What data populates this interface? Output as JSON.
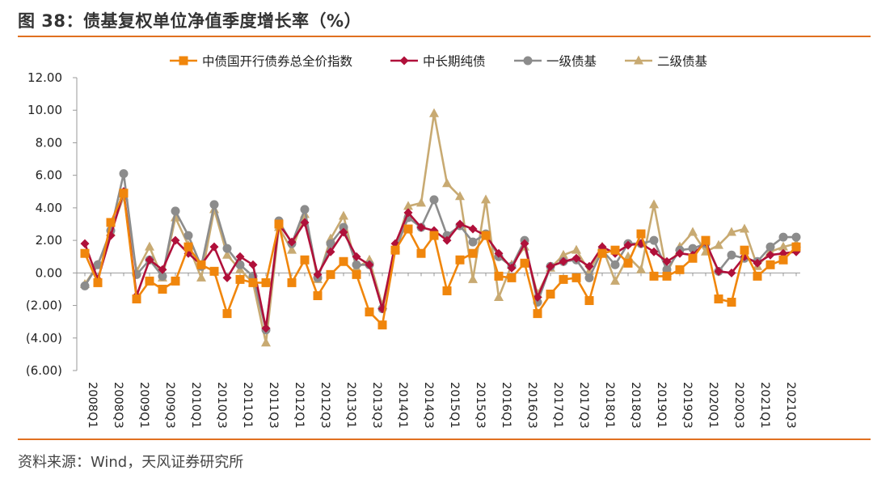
{
  "title": "图 38：债基复权单位净值季度增长率（%）",
  "source": "资料来源：Wind，天风证券研究所",
  "chart_data": {
    "type": "line",
    "ylim": [
      -6,
      12
    ],
    "y_tick_values": [
      12,
      10,
      8,
      6,
      4,
      2,
      0,
      -2,
      -4,
      -6
    ],
    "y_tick_labels": [
      "12.00",
      "10.00",
      "8.00",
      "6.00",
      "4.00",
      "2.00",
      "0.00",
      "(2.00)",
      "(4.00)",
      "(6.00)"
    ],
    "x": [
      "2008Q1",
      "2008Q2",
      "2008Q3",
      "2008Q4",
      "2009Q1",
      "2009Q2",
      "2009Q3",
      "2009Q4",
      "2010Q1",
      "2010Q2",
      "2010Q3",
      "2010Q4",
      "2011Q1",
      "2011Q2",
      "2011Q3",
      "2011Q4",
      "2012Q1",
      "2012Q2",
      "2012Q3",
      "2012Q4",
      "2013Q1",
      "2013Q2",
      "2013Q3",
      "2013Q4",
      "2014Q1",
      "2014Q2",
      "2014Q3",
      "2014Q4",
      "2015Q1",
      "2015Q2",
      "2015Q3",
      "2015Q4",
      "2016Q1",
      "2016Q2",
      "2016Q3",
      "2016Q4",
      "2017Q1",
      "2017Q2",
      "2017Q3",
      "2017Q4",
      "2018Q1",
      "2018Q2",
      "2018Q3",
      "2018Q4",
      "2019Q1",
      "2019Q2",
      "2019Q3",
      "2019Q4",
      "2020Q1",
      "2020Q2",
      "2020Q3",
      "2020Q4",
      "2021Q1",
      "2021Q2",
      "2021Q3",
      "2021Q4"
    ],
    "x_tick_labels": [
      "2008Q1",
      "2008Q3",
      "2009Q1",
      "2009Q3",
      "2010Q1",
      "2010Q3",
      "2011Q1",
      "2011Q3",
      "2012Q1",
      "2012Q3",
      "2013Q1",
      "2013Q3",
      "2014Q1",
      "2014Q3",
      "2015Q1",
      "2015Q3",
      "2016Q1",
      "2016Q3",
      "2017Q1",
      "2017Q3",
      "2018Q1",
      "2018Q3",
      "2019Q1",
      "2019Q3",
      "2020Q1",
      "2020Q3",
      "2021Q1",
      "2021Q3"
    ],
    "legend_position": "top",
    "grid": false,
    "series": [
      {
        "name": "中债国开行债券总全价指数",
        "color": "#f0860c",
        "marker": "square",
        "values": [
          1.2,
          -0.6,
          3.1,
          4.9,
          -1.6,
          -0.5,
          -1.0,
          -0.5,
          1.6,
          0.5,
          0.1,
          -2.5,
          -0.4,
          -0.6,
          -0.6,
          3.0,
          -0.6,
          0.8,
          -1.4,
          -0.1,
          0.7,
          -0.1,
          -2.4,
          -3.2,
          1.4,
          2.7,
          1.2,
          2.3,
          -1.1,
          0.8,
          1.2,
          2.3,
          -0.2,
          -0.3,
          0.6,
          -2.5,
          -1.3,
          -0.4,
          -0.3,
          -1.7,
          1.2,
          1.4,
          0.6,
          2.4,
          -0.2,
          -0.2,
          0.2,
          0.9,
          2.0,
          -1.6,
          -1.8,
          1.4,
          -0.2,
          0.5,
          0.8,
          1.6
        ]
      },
      {
        "name": "中长期纯债",
        "color": "#b0103a",
        "marker": "diamond",
        "values": [
          1.8,
          -0.4,
          2.3,
          5.0,
          -1.4,
          0.8,
          0.2,
          2.0,
          1.2,
          0.5,
          1.6,
          -0.3,
          1.0,
          0.5,
          -3.4,
          3.0,
          1.9,
          3.1,
          -0.1,
          1.3,
          2.5,
          1.0,
          0.5,
          -2.2,
          1.8,
          3.7,
          2.8,
          2.6,
          2.0,
          3.0,
          2.7,
          2.3,
          1.2,
          0.3,
          1.8,
          -1.5,
          0.4,
          0.7,
          0.9,
          0.4,
          1.6,
          1.2,
          1.7,
          1.8,
          1.3,
          0.7,
          1.2,
          1.1,
          1.9,
          0.1,
          0.0,
          1.0,
          0.6,
          1.1,
          1.2,
          1.3
        ]
      },
      {
        "name": "一级债基",
        "color": "#8c8c8c",
        "marker": "circle",
        "values": [
          -0.8,
          0.5,
          2.6,
          6.1,
          -0.1,
          0.8,
          -0.2,
          3.8,
          2.3,
          0.4,
          4.2,
          1.5,
          0.5,
          -0.2,
          -3.5,
          3.2,
          1.8,
          3.9,
          -0.3,
          1.8,
          2.8,
          0.5,
          0.5,
          -2.2,
          1.4,
          3.4,
          2.8,
          4.5,
          2.3,
          2.9,
          1.9,
          2.4,
          1.0,
          0.4,
          2.0,
          -1.8,
          0.4,
          0.7,
          0.8,
          -0.3,
          1.4,
          0.5,
          1.8,
          1.8,
          2.0,
          0.2,
          1.4,
          1.5,
          1.8,
          0.1,
          1.1,
          0.9,
          0.7,
          1.6,
          2.2,
          2.2
        ]
      },
      {
        "name": "二级债基",
        "color": "#c8aa72",
        "marker": "triangle",
        "values": [
          -0.7,
          0.5,
          2.5,
          4.7,
          0.1,
          1.6,
          -0.3,
          3.4,
          1.7,
          -0.3,
          3.9,
          1.1,
          0.2,
          -0.6,
          -4.3,
          2.8,
          1.4,
          3.6,
          -0.4,
          2.1,
          3.5,
          0.3,
          0.8,
          -2.0,
          1.5,
          4.1,
          4.3,
          9.8,
          5.5,
          4.7,
          -0.4,
          4.5,
          -1.5,
          0.5,
          1.6,
          -1.3,
          0.3,
          1.1,
          1.4,
          0.1,
          1.6,
          -0.5,
          1.0,
          0.2,
          4.2,
          0.0,
          1.6,
          2.5,
          1.3,
          1.7,
          2.5,
          2.7,
          0.4,
          1.3,
          1.6,
          1.8
        ]
      }
    ]
  }
}
